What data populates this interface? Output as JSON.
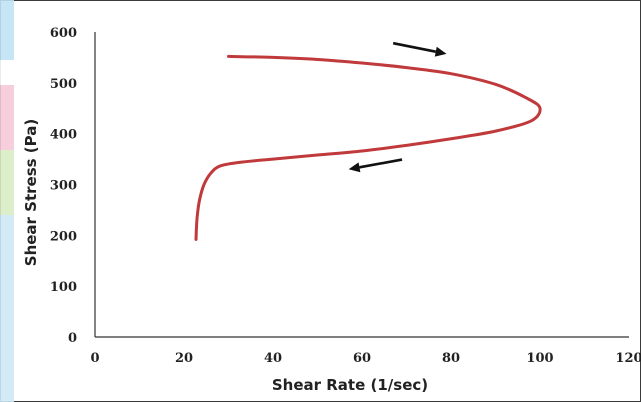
{
  "chart_data": {
    "type": "line",
    "title": "",
    "xlabel": "Shear Rate (1/sec)",
    "ylabel": "Shear  Stress (Pa)",
    "xlim": [
      0,
      120
    ],
    "ylim": [
      0,
      600
    ],
    "x_ticks": [
      "0",
      "20",
      "40",
      "60",
      "80",
      "100",
      "120"
    ],
    "y_ticks": [
      "0",
      "100",
      "200",
      "300",
      "400",
      "500",
      "600"
    ],
    "grid": false,
    "legend": "none",
    "series": [
      {
        "color": "#c0393b",
        "points": [
          [
            30,
            552
          ],
          [
            40,
            550
          ],
          [
            50,
            546
          ],
          [
            60,
            539
          ],
          [
            70,
            530
          ],
          [
            80,
            518
          ],
          [
            90,
            497
          ],
          [
            97,
            470
          ],
          [
            100,
            450
          ],
          [
            98,
            425
          ],
          [
            90,
            405
          ],
          [
            80,
            390
          ],
          [
            70,
            377
          ],
          [
            60,
            366
          ],
          [
            50,
            358
          ],
          [
            40,
            350
          ],
          [
            32,
            343
          ],
          [
            28,
            336
          ],
          [
            26,
            322
          ],
          [
            24.5,
            300
          ],
          [
            23.5,
            270
          ],
          [
            23,
            240
          ],
          [
            22.8,
            215
          ],
          [
            22.7,
            192
          ]
        ]
      }
    ],
    "annotations": [
      {
        "type": "arrow",
        "from": [
          67,
          578
        ],
        "to": [
          79,
          557
        ]
      },
      {
        "type": "arrow",
        "from": [
          69,
          349
        ],
        "to": [
          57,
          330
        ]
      }
    ]
  }
}
